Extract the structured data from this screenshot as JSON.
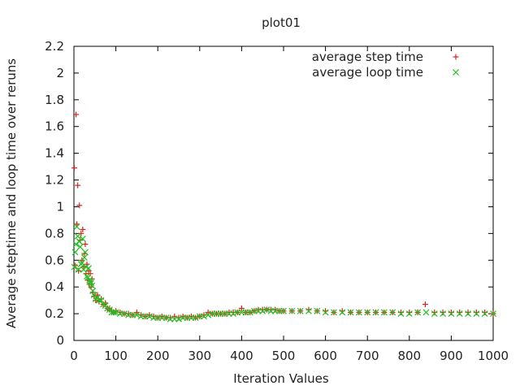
{
  "chart_data": {
    "type": "scatter",
    "title": "plot01",
    "xlabel": "Iteration Values",
    "ylabel": "Average steptime and loop time over reruns",
    "xlim": [
      0,
      1000
    ],
    "ylim": [
      0,
      2.2
    ],
    "xticks": [
      "0",
      "100",
      "200",
      "300",
      "400",
      "500",
      "600",
      "700",
      "800",
      "900",
      "1000"
    ],
    "yticks": [
      "0",
      "0.2",
      "0.4",
      "0.6",
      "0.8",
      "1",
      "1.2",
      "1.4",
      "1.6",
      "1.8",
      "2",
      "2.2"
    ],
    "grid": false,
    "legend_position": "top-right",
    "series": [
      {
        "name": "average step time",
        "marker": "plus",
        "color": "#d8251c",
        "x": [
          1,
          3,
          5,
          7,
          9,
          11,
          13,
          15,
          17,
          19,
          21,
          23,
          25,
          27,
          29,
          31,
          33,
          35,
          37,
          39,
          41,
          43,
          45,
          48,
          52,
          56,
          60,
          65,
          70,
          75,
          80,
          85,
          90,
          95,
          100,
          110,
          120,
          130,
          140,
          150,
          160,
          170,
          180,
          190,
          200,
          210,
          220,
          230,
          240,
          250,
          260,
          270,
          280,
          290,
          300,
          310,
          320,
          330,
          340,
          350,
          360,
          370,
          380,
          390,
          400,
          410,
          420,
          430,
          440,
          450,
          460,
          470,
          480,
          490,
          500,
          520,
          540,
          560,
          580,
          600,
          620,
          640,
          660,
          680,
          700,
          720,
          740,
          760,
          780,
          800,
          820,
          838,
          860,
          880,
          900,
          920,
          940,
          960,
          980,
          1000
        ],
        "y": [
          1.29,
          0.56,
          1.69,
          0.87,
          1.16,
          0.52,
          1.01,
          0.75,
          0.8,
          0.6,
          0.83,
          0.55,
          0.65,
          0.72,
          0.5,
          0.57,
          0.45,
          0.52,
          0.42,
          0.5,
          0.4,
          0.46,
          0.36,
          0.33,
          0.3,
          0.34,
          0.29,
          0.31,
          0.27,
          0.28,
          0.24,
          0.23,
          0.22,
          0.21,
          0.22,
          0.21,
          0.2,
          0.2,
          0.19,
          0.21,
          0.19,
          0.18,
          0.19,
          0.18,
          0.17,
          0.18,
          0.17,
          0.17,
          0.18,
          0.17,
          0.18,
          0.17,
          0.18,
          0.17,
          0.18,
          0.19,
          0.21,
          0.2,
          0.2,
          0.2,
          0.2,
          0.21,
          0.21,
          0.21,
          0.24,
          0.21,
          0.21,
          0.22,
          0.23,
          0.23,
          0.23,
          0.23,
          0.23,
          0.22,
          0.22,
          0.22,
          0.22,
          0.23,
          0.22,
          0.22,
          0.21,
          0.22,
          0.21,
          0.21,
          0.21,
          0.21,
          0.21,
          0.21,
          0.21,
          0.21,
          0.21,
          0.27,
          0.21,
          0.21,
          0.21,
          0.21,
          0.21,
          0.21,
          0.21,
          0.2
        ]
      },
      {
        "name": "average loop time",
        "marker": "cross",
        "color": "#1fbf1f",
        "x": [
          1,
          3,
          5,
          7,
          9,
          11,
          13,
          15,
          17,
          19,
          21,
          23,
          25,
          27,
          29,
          31,
          33,
          35,
          37,
          39,
          41,
          43,
          45,
          48,
          52,
          56,
          60,
          65,
          70,
          75,
          80,
          85,
          90,
          95,
          100,
          110,
          120,
          130,
          140,
          150,
          160,
          170,
          180,
          190,
          200,
          210,
          220,
          230,
          240,
          250,
          260,
          270,
          280,
          290,
          300,
          310,
          320,
          330,
          340,
          350,
          360,
          370,
          380,
          390,
          400,
          410,
          420,
          430,
          440,
          450,
          460,
          470,
          480,
          490,
          500,
          520,
          540,
          560,
          580,
          600,
          620,
          640,
          660,
          680,
          700,
          720,
          740,
          760,
          780,
          800,
          820,
          840,
          860,
          880,
          900,
          920,
          940,
          960,
          980,
          1000
        ],
        "y": [
          0.55,
          0.66,
          0.72,
          0.85,
          0.78,
          0.53,
          0.74,
          0.7,
          0.57,
          0.58,
          0.76,
          0.53,
          0.62,
          0.66,
          0.55,
          0.48,
          0.47,
          0.54,
          0.45,
          0.44,
          0.43,
          0.41,
          0.37,
          0.34,
          0.31,
          0.32,
          0.3,
          0.3,
          0.27,
          0.26,
          0.24,
          0.23,
          0.21,
          0.21,
          0.21,
          0.2,
          0.2,
          0.19,
          0.19,
          0.19,
          0.18,
          0.18,
          0.18,
          0.17,
          0.17,
          0.17,
          0.17,
          0.16,
          0.16,
          0.16,
          0.17,
          0.17,
          0.17,
          0.17,
          0.18,
          0.18,
          0.19,
          0.2,
          0.2,
          0.2,
          0.2,
          0.2,
          0.2,
          0.21,
          0.21,
          0.21,
          0.21,
          0.22,
          0.22,
          0.22,
          0.23,
          0.22,
          0.22,
          0.22,
          0.22,
          0.22,
          0.22,
          0.22,
          0.22,
          0.21,
          0.21,
          0.21,
          0.21,
          0.21,
          0.21,
          0.21,
          0.21,
          0.21,
          0.2,
          0.2,
          0.21,
          0.21,
          0.2,
          0.2,
          0.2,
          0.2,
          0.2,
          0.2,
          0.2,
          0.2
        ]
      }
    ]
  }
}
